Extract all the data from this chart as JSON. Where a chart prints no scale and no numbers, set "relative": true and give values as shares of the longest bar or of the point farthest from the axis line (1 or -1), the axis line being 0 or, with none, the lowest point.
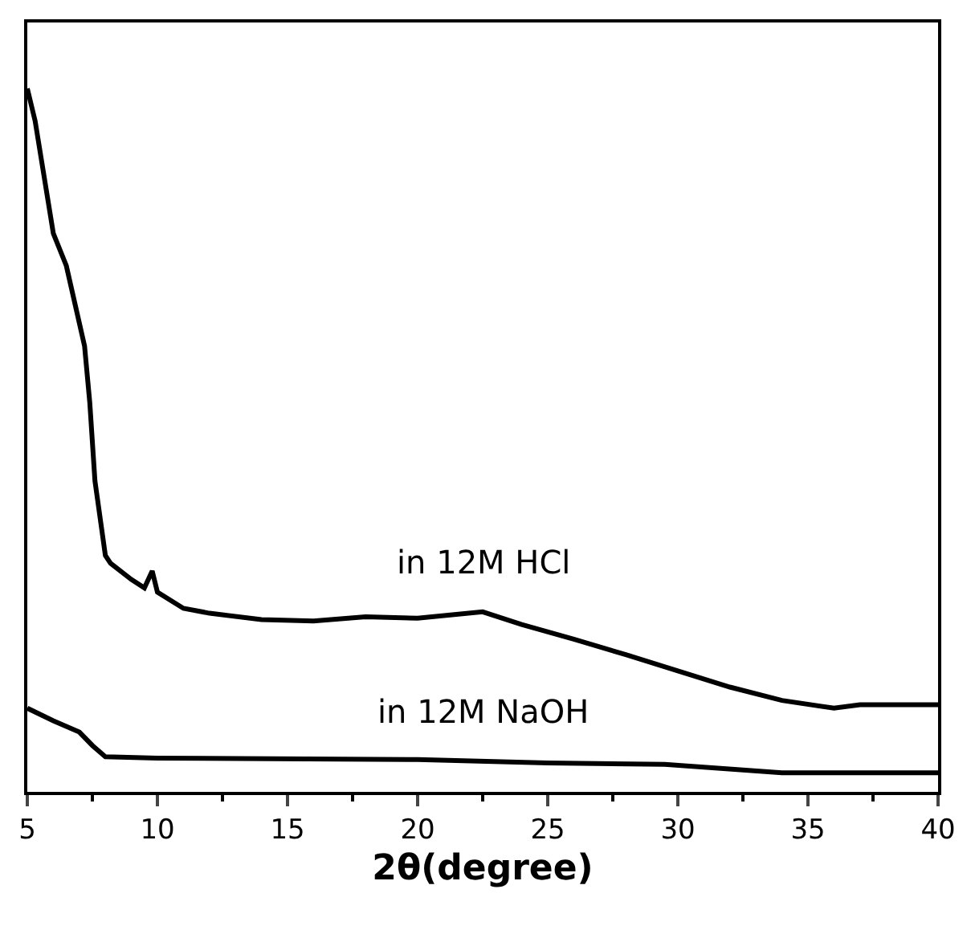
{
  "chart_data": {
    "type": "line",
    "xlabel": "2θ(degree)",
    "relative": true,
    "xlim": [
      5,
      40
    ],
    "xticks": [
      5,
      10,
      15,
      20,
      25,
      30,
      35,
      40
    ],
    "legend": false,
    "series": [
      {
        "name": "in 12M HCl",
        "color": "#000000",
        "x": [
          5,
          5.3,
          6,
          6.5,
          7.2,
          7.4,
          7.6,
          8,
          8.2,
          9,
          9.5,
          9.8,
          10,
          11,
          12,
          14,
          16,
          18,
          20,
          22.5,
          24,
          26,
          28,
          30,
          32,
          34,
          36,
          37,
          40
        ],
        "values": [
          1.0,
          0.954,
          0.794,
          0.748,
          0.634,
          0.554,
          0.442,
          0.336,
          0.325,
          0.302,
          0.29,
          0.314,
          0.284,
          0.261,
          0.254,
          0.245,
          0.243,
          0.249,
          0.247,
          0.256,
          0.238,
          0.217,
          0.195,
          0.172,
          0.149,
          0.13,
          0.119,
          0.124,
          0.124
        ]
      },
      {
        "name": "in 12M NaOH",
        "color": "#000000",
        "x": [
          5,
          6,
          7,
          7.5,
          8,
          10,
          20,
          25,
          29.5,
          34,
          40
        ],
        "values": [
          0.119,
          0.101,
          0.085,
          0.066,
          0.05,
          0.048,
          0.046,
          0.041,
          0.039,
          0.027,
          0.027
        ]
      }
    ]
  }
}
